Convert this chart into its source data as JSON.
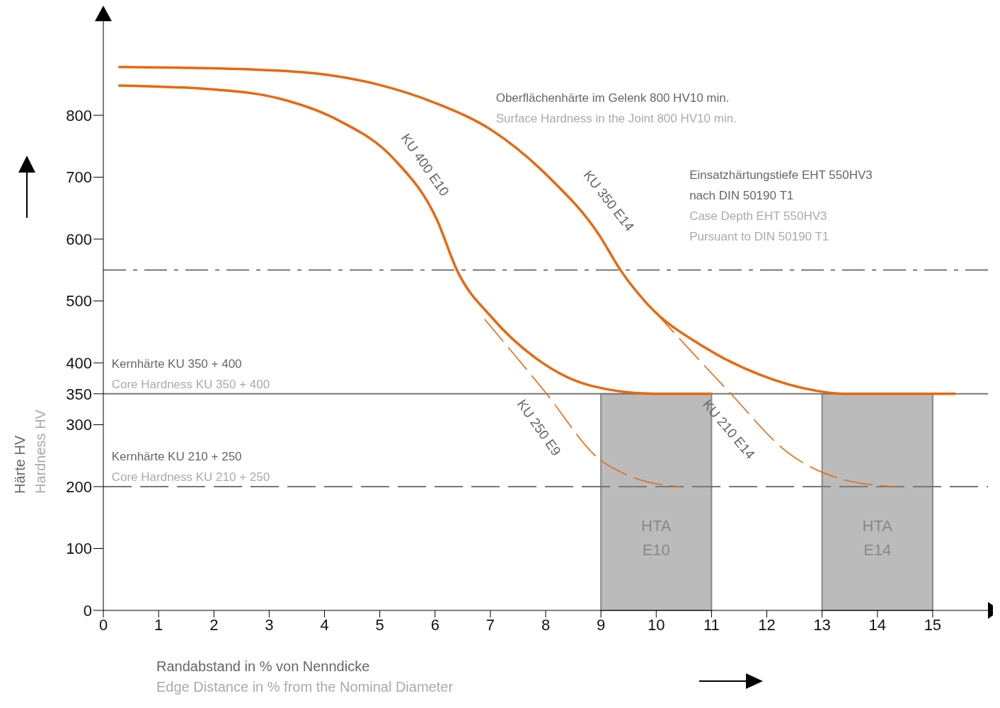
{
  "chart_data": {
    "type": "line",
    "xlabel": "Randabstand in % von Nenndicke\nEdge Distance in % from the Nominal Diameter",
    "ylabel": "Härte HV\nHardness HV",
    "xlim": [
      0,
      16
    ],
    "ylim": [
      0,
      960
    ],
    "xticks": [
      0,
      1,
      2,
      3,
      4,
      5,
      6,
      7,
      8,
      9,
      10,
      11,
      12,
      13,
      14,
      15
    ],
    "yticks": [
      0,
      100,
      200,
      300,
      350,
      400,
      500,
      600,
      700,
      800
    ],
    "marker": "none",
    "series": [
      {
        "name": "KU 350 E14",
        "color": "#e8680f",
        "line_style": "solid",
        "x": [
          0.29,
          2.7,
          4.0,
          5.0,
          6.0,
          7.04,
          8.06,
          8.95,
          9.36,
          9.84,
          10.86,
          11.87,
          12.89,
          13.4,
          15.4
        ],
        "values": [
          878,
          874,
          866,
          849,
          820,
          775,
          700,
          609,
          549,
          495,
          426,
          381,
          355,
          350,
          350
        ]
      },
      {
        "name": "KU 400 E10",
        "color": "#e8680f",
        "line_style": "solid",
        "x": [
          0.29,
          1.96,
          3.23,
          4.25,
          5.26,
          6.03,
          6.4,
          7.04,
          7.8,
          8.82,
          9.97,
          11.0
        ],
        "values": [
          848,
          842,
          826,
          792,
          729,
          632,
          549,
          472,
          409,
          363,
          350,
          350
        ]
      },
      {
        "name": "KU 250 E9",
        "color": "#e8680f",
        "line_style": "dashed",
        "x": [
          6.9,
          8.0,
          8.95,
          9.58,
          10.41
        ],
        "values": [
          470,
          352,
          246,
          215,
          200
        ]
      },
      {
        "name": "KU 210 E14",
        "color": "#e8680f",
        "line_style": "dashed",
        "x": [
          9.97,
          11.33,
          12.38,
          13.4,
          14.29
        ],
        "values": [
          483,
          352,
          255,
          211,
          200
        ]
      }
    ],
    "ref_lines": [
      {
        "axis": "y",
        "value": 550,
        "label": "Einsatzhärtungstiefe EHT 550HV3\nnach DIN 50190 T1\nCase Depth EHT 550HV3\nPursuant to DIN 50190 T1",
        "color": "#777777",
        "line_style": "dashed"
      },
      {
        "axis": "y",
        "value": 350,
        "label": "Kernhärte KU 350 + 400\nCore Hardness KU 350 + 400",
        "color": "#777777",
        "line_style": "solid"
      },
      {
        "axis": "y",
        "value": 200,
        "label": "Kernhärte KU 210 + 250\nCore Hardness KU 210 + 250",
        "color": "#777777",
        "line_style": "dashed"
      }
    ],
    "bands": [
      {
        "axis": "x",
        "from": 9,
        "to": 11,
        "label": "HTA\nE10",
        "color": "#bbbbbb"
      },
      {
        "axis": "x",
        "from": 13,
        "to": 15,
        "label": "HTA\nE14",
        "color": "#bbbbbb"
      }
    ],
    "annotations": [
      "Oberflächenhärte im Gelenk 800 HV10 min.\nSurface Hardness in the Joint 800 HV10 min."
    ]
  }
}
